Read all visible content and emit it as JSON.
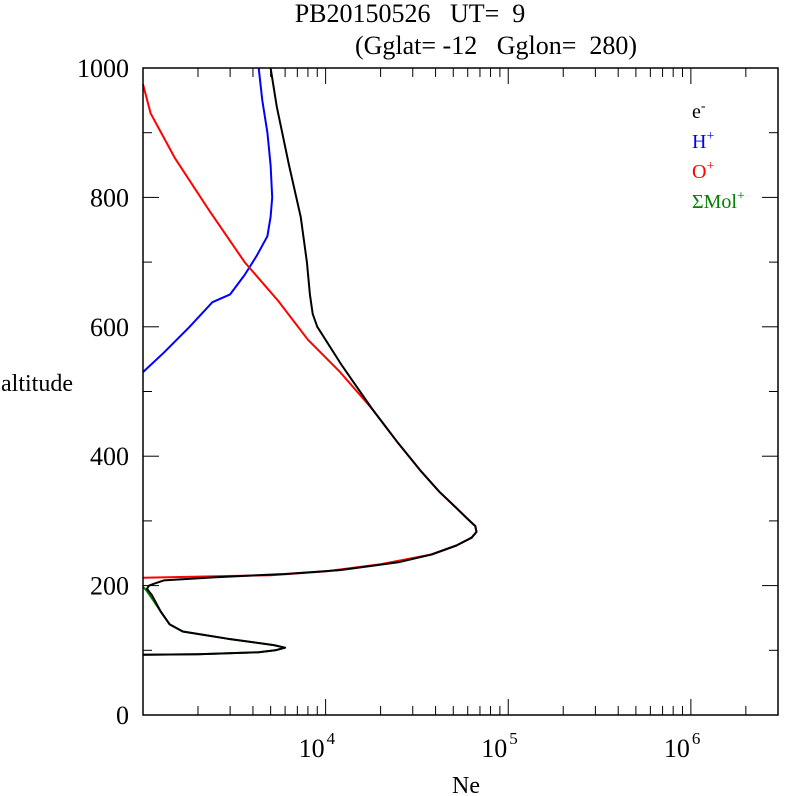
{
  "chart_data": {
    "type": "line",
    "title_line1": "PB20150526   UT=  9",
    "title_line2": "(Gglat= -12   Gglon=  280)",
    "xlabel": "Ne",
    "ylabel": "altitude",
    "xscale": "log",
    "xlim": [
      1000,
      3000000
    ],
    "ylim": [
      0,
      1000
    ],
    "yticks": [
      0,
      200,
      400,
      600,
      800,
      1000
    ],
    "ytick_labels": [
      "0",
      "200",
      "400",
      "600",
      "800",
      "1000"
    ],
    "xticks": [
      10000,
      100000,
      1000000
    ],
    "xtick_labels": [
      {
        "base": "10",
        "exp": "4"
      },
      {
        "base": "10",
        "exp": "5"
      },
      {
        "base": "10",
        "exp": "6"
      }
    ],
    "grid": false,
    "legend_position": "top-right",
    "series": [
      {
        "name": "e",
        "sup": "-",
        "color": "#000000",
        "points": [
          [
            1000,
            93
          ],
          [
            2000,
            94
          ],
          [
            4300,
            97
          ],
          [
            5300,
            100
          ],
          [
            6000,
            104
          ],
          [
            5200,
            108
          ],
          [
            2900,
            118
          ],
          [
            1650,
            129
          ],
          [
            1400,
            140
          ],
          [
            1250,
            160
          ],
          [
            1120,
            185
          ],
          [
            1050,
            195
          ],
          [
            1080,
            200
          ],
          [
            1150,
            203
          ],
          [
            1300,
            208
          ],
          [
            2500,
            213
          ],
          [
            6000,
            218
          ],
          [
            12000,
            224
          ],
          [
            25000,
            236
          ],
          [
            38000,
            248
          ],
          [
            52000,
            262
          ],
          [
            63000,
            274
          ],
          [
            67000,
            283
          ],
          [
            66000,
            292
          ],
          [
            60000,
            303
          ],
          [
            52000,
            320
          ],
          [
            42000,
            345
          ],
          [
            33000,
            378
          ],
          [
            25000,
            420
          ],
          [
            18000,
            473
          ],
          [
            12300,
            540
          ],
          [
            9000,
            600
          ],
          [
            8500,
            620
          ],
          [
            8200,
            650
          ],
          [
            7900,
            700
          ],
          [
            7300,
            770
          ],
          [
            6300,
            850
          ],
          [
            5400,
            940
          ],
          [
            5000,
            1000
          ]
        ]
      },
      {
        "name": "H",
        "sup": "+",
        "color": "#0000ff",
        "points": [
          [
            1000,
            530
          ],
          [
            1300,
            560
          ],
          [
            1800,
            600
          ],
          [
            2400,
            638
          ],
          [
            3000,
            650
          ],
          [
            3600,
            680
          ],
          [
            4200,
            710
          ],
          [
            4800,
            740
          ],
          [
            5000,
            770
          ],
          [
            5100,
            800
          ],
          [
            5000,
            850
          ],
          [
            4800,
            900
          ],
          [
            4500,
            950
          ],
          [
            4300,
            1000
          ]
        ]
      },
      {
        "name": "O",
        "sup": "+",
        "color": "#ff0000",
        "points": [
          [
            1000,
            212
          ],
          [
            5000,
            216
          ],
          [
            10000,
            222
          ],
          [
            20000,
            233
          ],
          [
            38000,
            248
          ],
          [
            52000,
            262
          ],
          [
            63000,
            274
          ],
          [
            67000,
            283
          ],
          [
            66000,
            292
          ],
          [
            60000,
            303
          ],
          [
            52000,
            320
          ],
          [
            42000,
            345
          ],
          [
            33000,
            378
          ],
          [
            25000,
            420
          ],
          [
            18000,
            473
          ],
          [
            12000,
            530
          ],
          [
            8000,
            580
          ],
          [
            5500,
            640
          ],
          [
            3600,
            700
          ],
          [
            2300,
            780
          ],
          [
            1500,
            860
          ],
          [
            1100,
            930
          ],
          [
            1000,
            975
          ]
        ]
      },
      {
        "name": "ΣMol",
        "sup": "+",
        "color": "#008000",
        "points": [
          [
            1000,
            93
          ],
          [
            2000,
            94
          ],
          [
            4300,
            97
          ],
          [
            5300,
            100
          ],
          [
            6000,
            104
          ],
          [
            5200,
            108
          ],
          [
            2900,
            118
          ],
          [
            1650,
            129
          ],
          [
            1400,
            140
          ],
          [
            1250,
            160
          ],
          [
            1120,
            180
          ],
          [
            1040,
            193
          ],
          [
            1000,
            198
          ]
        ]
      }
    ]
  }
}
